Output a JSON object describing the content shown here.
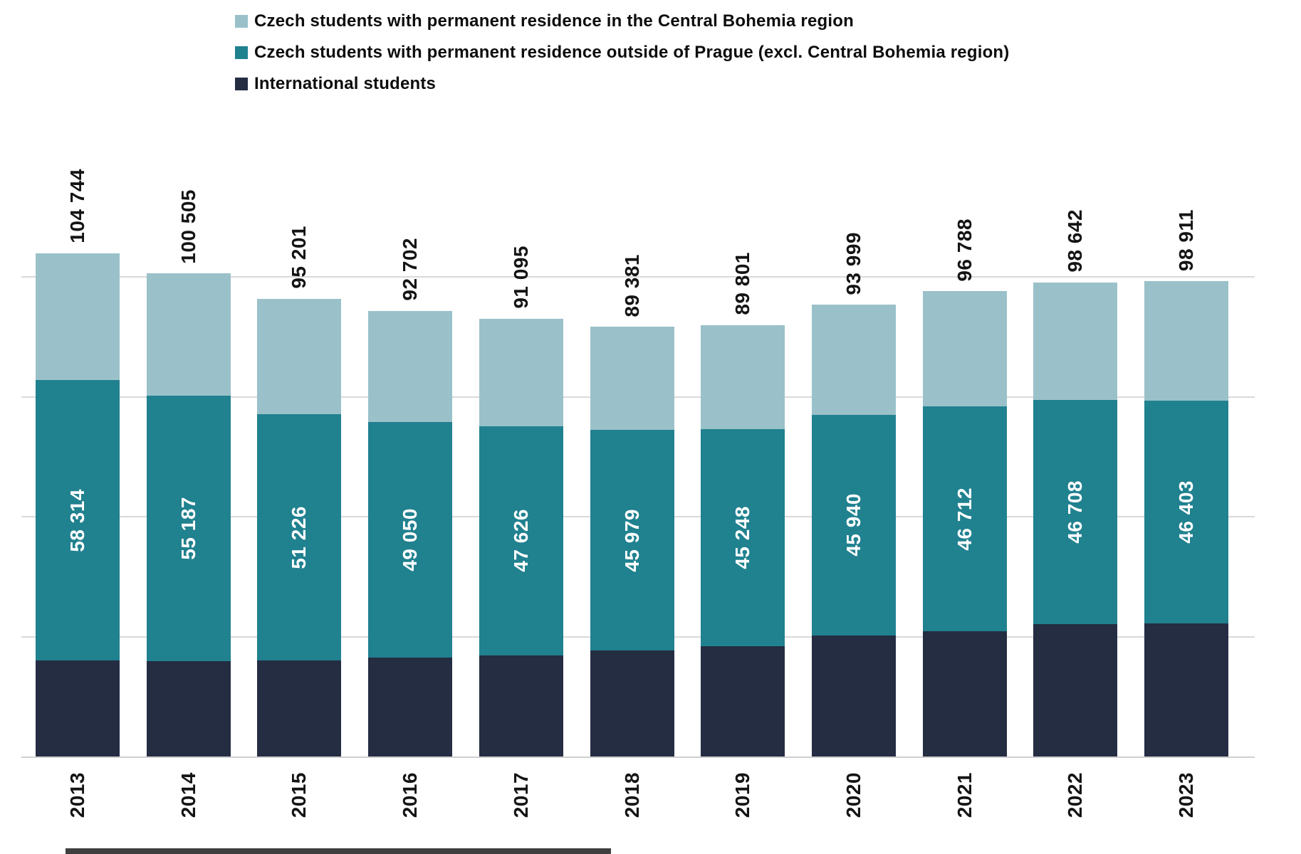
{
  "legend": {
    "items": [
      {
        "label": "Czech students with permanent residence in the Central Bohemia region",
        "color": "#9ac1c9"
      },
      {
        "label": "Czech students with permanent residence outside of Prague (excl. Central Bohemia region)",
        "color": "#20818f"
      },
      {
        "label": "International students",
        "color": "#242d42"
      }
    ]
  },
  "chart_data": {
    "type": "bar",
    "subtype": "stacked-vertical",
    "categories": [
      "2013",
      "2014",
      "2015",
      "2016",
      "2017",
      "2018",
      "2019",
      "2020",
      "2021",
      "2022",
      "2023"
    ],
    "series": [
      {
        "name": "International students",
        "color": "#242d42",
        "values_estimated_from_pixels": true,
        "values": [
          20000,
          19900,
          20000,
          20600,
          21100,
          22000,
          22900,
          25200,
          26100,
          27500,
          27700
        ]
      },
      {
        "name": "Czech students with permanent residence outside of Prague (excl. Central Bohemia region)",
        "color": "#20818f",
        "values": [
          58314,
          55187,
          51226,
          49050,
          47626,
          45979,
          45248,
          45940,
          46712,
          46708,
          46403
        ],
        "data_labels": [
          "58 314",
          "55 187",
          "51 226",
          "49 050",
          "47 626",
          "45 979",
          "45 248",
          "45 940",
          "46 712",
          "46 708",
          "46 403"
        ]
      },
      {
        "name": "Czech students with permanent residence in the Central Bohemia region",
        "color": "#9ac1c9",
        "values_estimated_from_pixels": true,
        "values": [
          26430,
          25418,
          23975,
          23052,
          22369,
          21402,
          21653,
          22859,
          23976,
          24434,
          24808
        ]
      }
    ],
    "totals": [
      104744,
      100505,
      95201,
      92702,
      91095,
      89381,
      89801,
      93999,
      96788,
      98642,
      98911
    ],
    "total_labels": [
      "104 744",
      "100 505",
      "95 201",
      "92 702",
      "91 095",
      "89 381",
      "89 801",
      "93 999",
      "96 788",
      "98 642",
      "98 911"
    ],
    "ylim": [
      0,
      130000
    ],
    "gridline_step": 25000,
    "grid": true,
    "y_axis_labels_visible": false,
    "legend_position": "top-left",
    "label_rotation_degrees": 90
  },
  "colors": {
    "background": "#ffffff",
    "gridline": "#d9d9d9",
    "total_label_text": "#141414",
    "segment_label_text": "#ffffff",
    "year_label_text": "#141414",
    "bottom_strip": "#3f3f3f"
  }
}
